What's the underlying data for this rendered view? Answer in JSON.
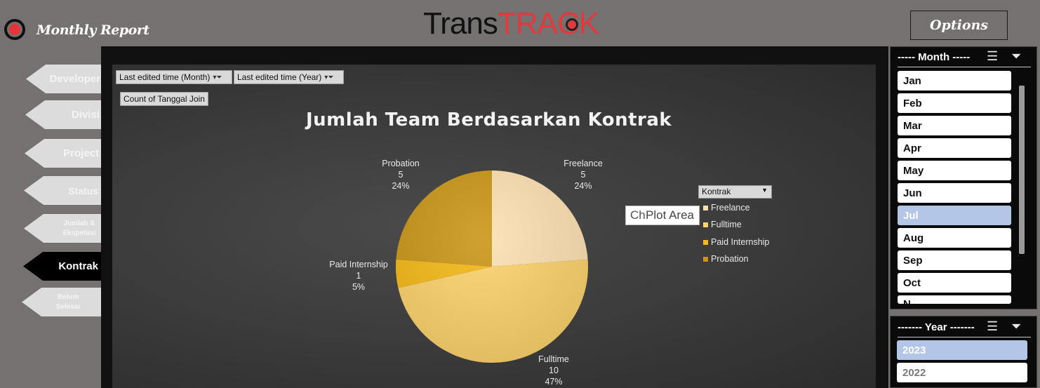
{
  "header": {
    "report_title": "Monthly Report",
    "brand_part1": "Trans",
    "brand_part2": "TRACK",
    "options_label": "Options"
  },
  "nav": {
    "items": [
      {
        "label": "Developer"
      },
      {
        "label": "Divisi"
      },
      {
        "label": "Project"
      },
      {
        "label": "Status"
      },
      {
        "label": "Jumlah & Ekspetasi"
      },
      {
        "label": "Kontrak"
      },
      {
        "label": "Belum Selesai"
      }
    ],
    "active": "Kontrak"
  },
  "pivot": {
    "filter_month": "Last edited time (Month)",
    "filter_year": "Last edited time (Year)",
    "value_field": "Count of Tanggal Join",
    "legend_field": "Kontrak"
  },
  "tooltip": {
    "partial": "Ch",
    "text": "Plot Area"
  },
  "chart_data": {
    "type": "pie",
    "title": "Jumlah Team Berdasarkan Kontrak",
    "categories": [
      "Freelance",
      "Fulltime",
      "Paid Internship",
      "Probation"
    ],
    "values": [
      5,
      10,
      1,
      5
    ],
    "percent_labels": [
      "24%",
      "47%",
      "5%",
      "24%"
    ],
    "colors": [
      "#fde0b0",
      "#fcd26a",
      "#f5b914",
      "#c99514"
    ],
    "legend": "right"
  },
  "slicers": {
    "month": {
      "title": "----- Month -----",
      "items": [
        "Jan",
        "Feb",
        "Mar",
        "Apr",
        "May",
        "Jun",
        "Jul",
        "Aug",
        "Sep",
        "Oct",
        "N"
      ],
      "selected": "Jul"
    },
    "year": {
      "title": "------- Year -------",
      "items": [
        "2023",
        "2022"
      ],
      "selected": "2023"
    }
  },
  "icons": {
    "multi_select": "multi-select-icon",
    "clear_filter": "clear-filter-icon",
    "filter": "filter-icon",
    "dropdown": "dropdown-arrow-icon"
  }
}
